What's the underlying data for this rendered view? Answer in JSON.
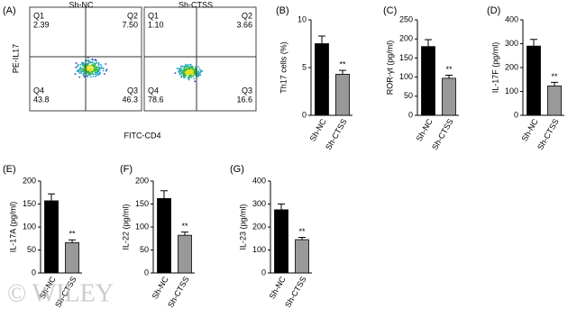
{
  "chart_data": [
    {
      "type": "flow",
      "panel": "(A)",
      "ylabel": "PE-IL17",
      "xlabel": "FITC-CD4",
      "plots": [
        {
          "title": "Sh-NC",
          "quadrants": [
            {
              "name": "Q1",
              "label": "2.39"
            },
            {
              "name": "Q2",
              "label": "7.50"
            },
            {
              "name": "Q4",
              "label": "43.8"
            },
            {
              "name": "Q3",
              "label": "46.3"
            }
          ]
        },
        {
          "title": "Sh-CTSS",
          "quadrants": [
            {
              "name": "Q1",
              "label": "1.10"
            },
            {
              "name": "Q2",
              "label": "3.66"
            },
            {
              "name": "Q4",
              "label": "78.6"
            },
            {
              "name": "Q3",
              "label": "16.6"
            }
          ]
        }
      ]
    },
    {
      "type": "bar",
      "panel": "(B)",
      "ylabel": "Th17 cells (%)",
      "categories": [
        "Sh-NC",
        "Sh-CTSS"
      ],
      "values": [
        7.5,
        4.3
      ],
      "errors": [
        0.8,
        0.4
      ],
      "colors": [
        "#000000",
        "#999999"
      ],
      "annotation": "**",
      "ylim": [
        0,
        10
      ],
      "yticks": [
        0,
        5,
        10
      ]
    },
    {
      "type": "bar",
      "panel": "(C)",
      "ylabel": "ROR-γt (pg/ml)",
      "categories": [
        "Sh-NC",
        "Sh-CTSS"
      ],
      "values": [
        180,
        97
      ],
      "errors": [
        18,
        8
      ],
      "colors": [
        "#000000",
        "#999999"
      ],
      "annotation": "**",
      "ylim": [
        0,
        250
      ],
      "yticks": [
        0,
        50,
        100,
        150,
        200,
        250
      ]
    },
    {
      "type": "bar",
      "panel": "(D)",
      "ylabel": "IL-17F (pg/ml)",
      "categories": [
        "Sh-NC",
        "Sh-CTSS"
      ],
      "values": [
        290,
        123
      ],
      "errors": [
        28,
        15
      ],
      "colors": [
        "#000000",
        "#999999"
      ],
      "annotation": "**",
      "ylim": [
        0,
        400
      ],
      "yticks": [
        0,
        100,
        200,
        300,
        400
      ]
    },
    {
      "type": "bar",
      "panel": "(E)",
      "ylabel": "IL-17A (pg/ml)",
      "categories": [
        "Sh-NC",
        "Sh-CTSS"
      ],
      "values": [
        157,
        66
      ],
      "errors": [
        15,
        6
      ],
      "colors": [
        "#000000",
        "#999999"
      ],
      "annotation": "**",
      "ylim": [
        0,
        200
      ],
      "yticks": [
        0,
        50,
        100,
        150,
        200
      ]
    },
    {
      "type": "bar",
      "panel": "(F)",
      "ylabel": "IL-22 (pg/ml)",
      "categories": [
        "Sh-NC",
        "Sh-CTSS"
      ],
      "values": [
        162,
        82
      ],
      "errors": [
        17,
        7
      ],
      "colors": [
        "#000000",
        "#999999"
      ],
      "annotation": "**",
      "ylim": [
        0,
        200
      ],
      "yticks": [
        0,
        50,
        100,
        150,
        200
      ]
    },
    {
      "type": "bar",
      "panel": "(G)",
      "ylabel": "IL-23 (pg/ml)",
      "categories": [
        "Sh-NC",
        "Sh-CTSS"
      ],
      "values": [
        275,
        145
      ],
      "errors": [
        25,
        10
      ],
      "colors": [
        "#000000",
        "#999999"
      ],
      "annotation": "**",
      "ylim": [
        0,
        400
      ],
      "yticks": [
        0,
        100,
        200,
        300,
        400
      ]
    }
  ],
  "watermark": "© WILEY"
}
